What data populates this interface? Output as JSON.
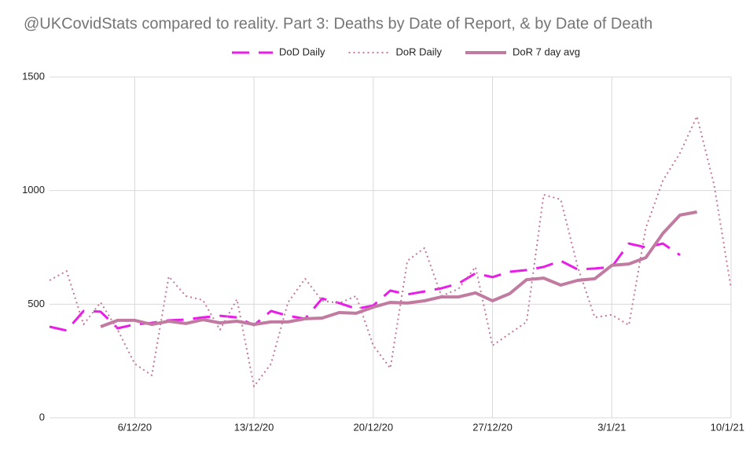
{
  "chart_data": {
    "type": "line",
    "title": "@UKCovidStats compared to reality. Part 3: Deaths by Date of Report, & by Date of Death",
    "categories": [
      null,
      null,
      null,
      null,
      null,
      "6/12/20",
      null,
      null,
      null,
      null,
      null,
      null,
      "13/12/20",
      null,
      null,
      null,
      null,
      null,
      null,
      "20/12/20",
      null,
      null,
      null,
      null,
      null,
      null,
      "27/12/20",
      null,
      null,
      null,
      null,
      null,
      null,
      "3/1/21",
      null,
      null,
      null,
      null,
      null,
      null,
      "10/1/21"
    ],
    "series": [
      {
        "name": "DoD Daily",
        "color": "#e81ee8",
        "line_style": "dashed",
        "values": [
          401,
          384,
          470,
          467,
          394,
          411,
          418,
          429,
          432,
          442,
          449,
          442,
          408,
          470,
          449,
          436,
          525,
          505,
          480,
          494,
          560,
          543,
          556,
          570,
          591,
          636,
          619,
          643,
          650,
          664,
          691,
          653,
          657,
          664,
          767,
          750,
          767,
          716,
          null,
          null,
          null
        ]
      },
      {
        "name": "DoR Daily",
        "color": "#c4789a",
        "line_style": "dotted",
        "values": [
          605,
          646,
          411,
          508,
          387,
          238,
          187,
          622,
          536,
          518,
          387,
          522,
          138,
          238,
          508,
          612,
          515,
          505,
          536,
          318,
          218,
          691,
          747,
          536,
          567,
          664,
          318,
          370,
          422,
          982,
          961,
          664,
          442,
          453,
          408,
          836,
          1044,
          1165,
          1327,
          1027,
          570
        ]
      },
      {
        "name": "DoR 7 day avg",
        "color": "#c27ba0",
        "line_style": "solid",
        "values": [
          null,
          null,
          null,
          401,
          429,
          429,
          411,
          425,
          415,
          432,
          418,
          425,
          411,
          422,
          422,
          436,
          439,
          463,
          460,
          487,
          508,
          505,
          515,
          532,
          532,
          550,
          515,
          546,
          608,
          615,
          584,
          605,
          612,
          671,
          677,
          705,
          812,
          892,
          906,
          null,
          null
        ]
      }
    ],
    "ylim": [
      0,
      1500
    ],
    "yticks": [
      0,
      500,
      1000,
      1500
    ],
    "grid": true,
    "legend": "top"
  }
}
